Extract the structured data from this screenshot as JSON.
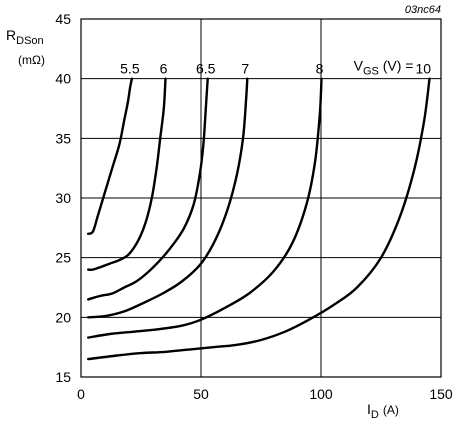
{
  "chart_data": {
    "type": "line",
    "figure_code": "03nc64",
    "xlabel": {
      "main": "I",
      "sub": "D",
      "unit": "(A)"
    },
    "ylabel": {
      "main": "R",
      "sub": "DSon",
      "unit": "(mΩ)"
    },
    "xlim": [
      0,
      150
    ],
    "ylim": [
      15,
      45
    ],
    "xticks": [
      0,
      50,
      100,
      150
    ],
    "yticks": [
      15,
      20,
      25,
      30,
      35,
      40,
      45
    ],
    "grid": true,
    "legend_prefix": {
      "main": "V",
      "sub": "GS",
      "rest": " (V) = "
    },
    "series": [
      {
        "name": "5.5",
        "x": [
          3,
          5,
          7,
          10,
          13,
          16,
          18,
          19.5,
          20.5,
          21.2
        ],
        "y": [
          27,
          27.2,
          28.5,
          30.5,
          32.5,
          34.5,
          36.5,
          38,
          39.3,
          40
        ]
      },
      {
        "name": "6",
        "x": [
          3,
          5,
          8,
          12,
          16,
          20,
          24,
          27,
          29.5,
          31.5,
          33,
          34.5,
          35.2
        ],
        "y": [
          24,
          24,
          24.2,
          24.5,
          24.8,
          25.3,
          26.5,
          28,
          30,
          32.5,
          35,
          37.5,
          40
        ]
      },
      {
        "name": "6.5",
        "x": [
          3,
          8,
          13,
          18,
          23,
          28,
          33,
          38,
          43,
          47,
          49.5,
          51,
          52,
          52.8
        ],
        "y": [
          21.5,
          21.8,
          22,
          22.5,
          23,
          23.8,
          24.8,
          26,
          27.5,
          29.5,
          32,
          34.5,
          37.5,
          40
        ]
      },
      {
        "name": "7",
        "x": [
          3,
          10,
          18,
          26,
          34,
          42,
          50,
          56,
          61,
          65,
          67.5,
          68.7,
          69.3
        ],
        "y": [
          20,
          20.1,
          20.5,
          21.2,
          22,
          23,
          24.5,
          26.5,
          29,
          32,
          35,
          38,
          40
        ]
      },
      {
        "name": "8",
        "x": [
          3,
          12,
          22,
          32,
          42,
          50,
          60,
          70,
          80,
          88,
          94,
          97.5,
          99.5,
          100.2
        ],
        "y": [
          18.3,
          18.6,
          18.8,
          19,
          19.3,
          19.8,
          20.8,
          22,
          23.8,
          26.2,
          29.5,
          33,
          37,
          40
        ]
      },
      {
        "name": "10",
        "x": [
          3,
          15,
          25,
          35,
          45,
          55,
          65,
          75,
          85,
          95,
          105,
          115,
          125,
          133,
          139,
          143,
          145.2
        ],
        "y": [
          16.5,
          16.8,
          17,
          17.1,
          17.3,
          17.5,
          17.7,
          18.1,
          18.8,
          19.8,
          21,
          22.5,
          25,
          28.5,
          32.5,
          36.5,
          40
        ]
      }
    ]
  }
}
